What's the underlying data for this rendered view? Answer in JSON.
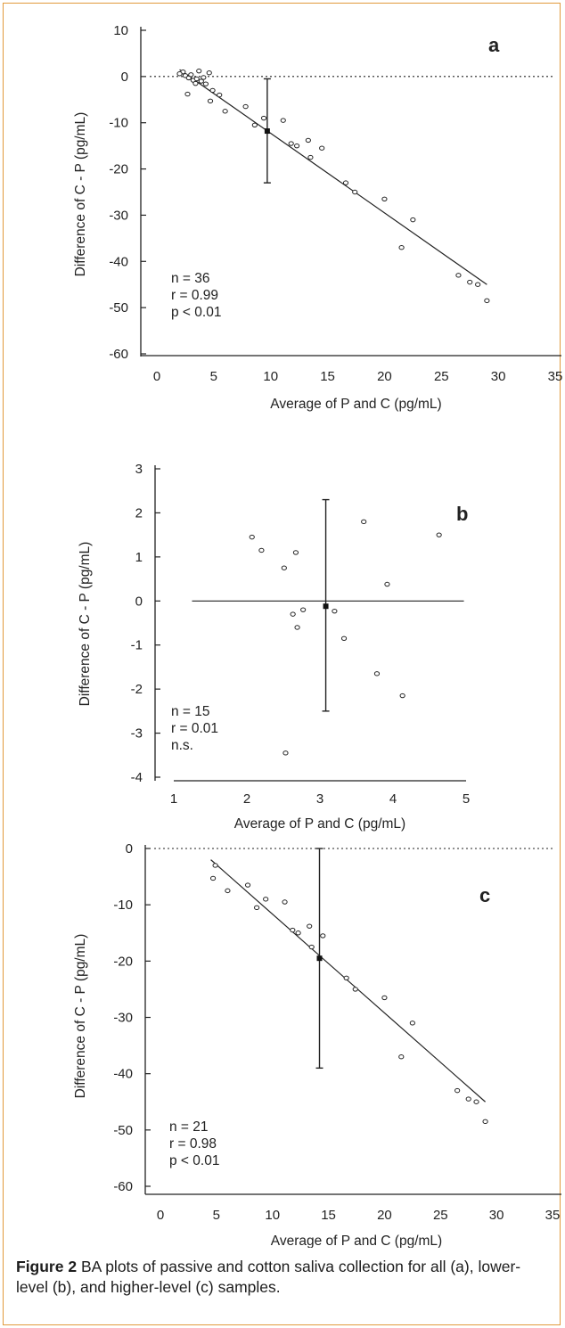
{
  "figure": {
    "caption_label": "Figure 2",
    "caption_text": "BA plots of passive and cotton saliva collection for all (a), lower-level (b), and higher-level (c) samples."
  },
  "chart_data": [
    {
      "type": "scatter",
      "panel_label": "a",
      "xlabel": "Average of P and C (pg/mL)",
      "ylabel": "Difference of C - P (pg/mL)",
      "xlim": [
        0,
        35
      ],
      "ylim": [
        -60,
        10
      ],
      "xticks": [
        0,
        5,
        10,
        15,
        20,
        25,
        30,
        35
      ],
      "yticks": [
        10,
        0,
        -10,
        -20,
        -30,
        -40,
        -50,
        -60
      ],
      "stats": [
        "n = 36",
        "r = 0.99",
        "p < 0.01"
      ],
      "reference_line": 0,
      "points": [
        [
          2.3,
          1.0
        ],
        [
          2.5,
          0.2
        ],
        [
          2.8,
          -0.3
        ],
        [
          3.0,
          0.4
        ],
        [
          3.2,
          -0.8
        ],
        [
          3.5,
          -0.5
        ],
        [
          3.7,
          1.2
        ],
        [
          3.9,
          -1.0
        ],
        [
          4.1,
          -0.2
        ],
        [
          4.3,
          -1.6
        ],
        [
          4.6,
          0.8
        ],
        [
          2.7,
          -3.8
        ],
        [
          4.9,
          -3.0
        ],
        [
          4.7,
          -5.3
        ],
        [
          6.0,
          -7.5
        ],
        [
          7.8,
          -6.5
        ],
        [
          8.6,
          -10.5
        ],
        [
          9.4,
          -9.0
        ],
        [
          11.1,
          -9.5
        ],
        [
          11.8,
          -14.5
        ],
        [
          12.3,
          -15.0
        ],
        [
          13.3,
          -13.8
        ],
        [
          13.5,
          -17.5
        ],
        [
          14.5,
          -15.5
        ],
        [
          16.6,
          -23.0
        ],
        [
          17.4,
          -25.0
        ],
        [
          20.0,
          -26.5
        ],
        [
          22.5,
          -31.0
        ],
        [
          21.5,
          -37.0
        ],
        [
          26.5,
          -43.0
        ],
        [
          27.5,
          -44.5
        ],
        [
          28.2,
          -45.0
        ],
        [
          29.0,
          -48.5
        ],
        [
          5.5,
          -4.0
        ],
        [
          3.4,
          -1.5
        ],
        [
          2.0,
          0.6
        ]
      ],
      "mean_point": [
        9.7,
        -11.8
      ],
      "error_bar": [
        -23.0,
        -0.5
      ],
      "fit_line": [
        [
          2.0,
          1.5
        ],
        [
          29.0,
          -45.0
        ]
      ]
    },
    {
      "type": "scatter",
      "panel_label": "b",
      "xlabel": "Average of P and C (pg/mL)",
      "ylabel": "Difference of C - P (pg/mL)",
      "xlim": [
        1,
        5
      ],
      "ylim": [
        -4,
        3
      ],
      "xticks": [
        1,
        2,
        3,
        4,
        5
      ],
      "yticks": [
        3,
        2,
        1,
        0,
        -1,
        -2,
        -3,
        -4
      ],
      "stats": [
        "n = 15",
        "r = 0.01",
        "n.s."
      ],
      "reference_line": 0,
      "points": [
        [
          2.07,
          1.45
        ],
        [
          2.2,
          1.15
        ],
        [
          2.51,
          0.75
        ],
        [
          2.67,
          1.1
        ],
        [
          2.63,
          -0.3
        ],
        [
          2.69,
          -0.6
        ],
        [
          2.77,
          -0.2
        ],
        [
          3.2,
          -0.23
        ],
        [
          3.33,
          -0.85
        ],
        [
          3.6,
          1.8
        ],
        [
          3.78,
          -1.65
        ],
        [
          3.92,
          0.38
        ],
        [
          4.13,
          -2.15
        ],
        [
          4.63,
          1.5
        ],
        [
          2.53,
          -3.45
        ]
      ],
      "mean_point": [
        3.08,
        -0.12
      ],
      "error_bar": [
        -2.5,
        2.3
      ],
      "fit_line": [
        [
          1.25,
          0.0
        ],
        [
          4.97,
          0.0
        ]
      ]
    },
    {
      "type": "scatter",
      "panel_label": "c",
      "xlabel": "Average of P and C (pg/mL)",
      "ylabel": "Difference of C - P (pg/mL)",
      "xlim": [
        0,
        35
      ],
      "ylim": [
        -60,
        0
      ],
      "xticks": [
        0,
        5,
        10,
        15,
        20,
        25,
        30,
        35
      ],
      "yticks": [
        0,
        -10,
        -20,
        -30,
        -40,
        -50,
        -60
      ],
      "stats": [
        "n = 21",
        "r = 0.98",
        "p < 0.01"
      ],
      "reference_line": 0,
      "points": [
        [
          4.9,
          -3.0
        ],
        [
          4.7,
          -5.3
        ],
        [
          6.0,
          -7.5
        ],
        [
          7.8,
          -6.5
        ],
        [
          8.6,
          -10.5
        ],
        [
          9.4,
          -9.0
        ],
        [
          11.1,
          -9.5
        ],
        [
          11.8,
          -14.5
        ],
        [
          12.3,
          -15.0
        ],
        [
          13.3,
          -13.8
        ],
        [
          13.5,
          -17.5
        ],
        [
          14.5,
          -15.5
        ],
        [
          16.6,
          -23.0
        ],
        [
          17.4,
          -25.0
        ],
        [
          20.0,
          -26.5
        ],
        [
          22.5,
          -31.0
        ],
        [
          21.5,
          -37.0
        ],
        [
          26.5,
          -43.0
        ],
        [
          27.5,
          -44.5
        ],
        [
          28.2,
          -45.0
        ],
        [
          29.0,
          -48.5
        ]
      ],
      "mean_point": [
        14.2,
        -19.5
      ],
      "error_bar": [
        -39.0,
        0.0
      ],
      "fit_line": [
        [
          4.5,
          -2.0
        ],
        [
          29.0,
          -45.0
        ]
      ]
    }
  ]
}
